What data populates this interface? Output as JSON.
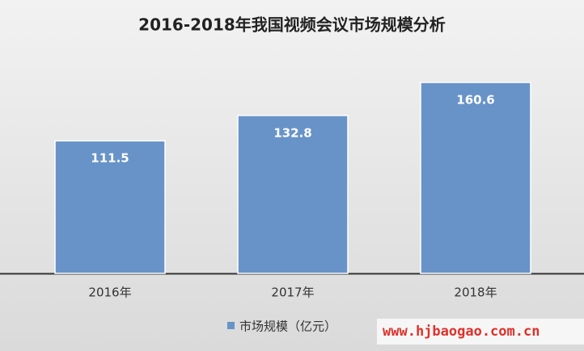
{
  "chart_data": {
    "type": "bar",
    "title": "2016-2018年我国视频会议市场规模分析",
    "categories": [
      "2016年",
      "2017年",
      "2018年"
    ],
    "series": [
      {
        "name": "市场规模（亿元）",
        "color": "#6893c8",
        "values": [
          111.5,
          132.8,
          160.6
        ]
      }
    ],
    "watermark": "www.hjbaogao.com.cn"
  }
}
